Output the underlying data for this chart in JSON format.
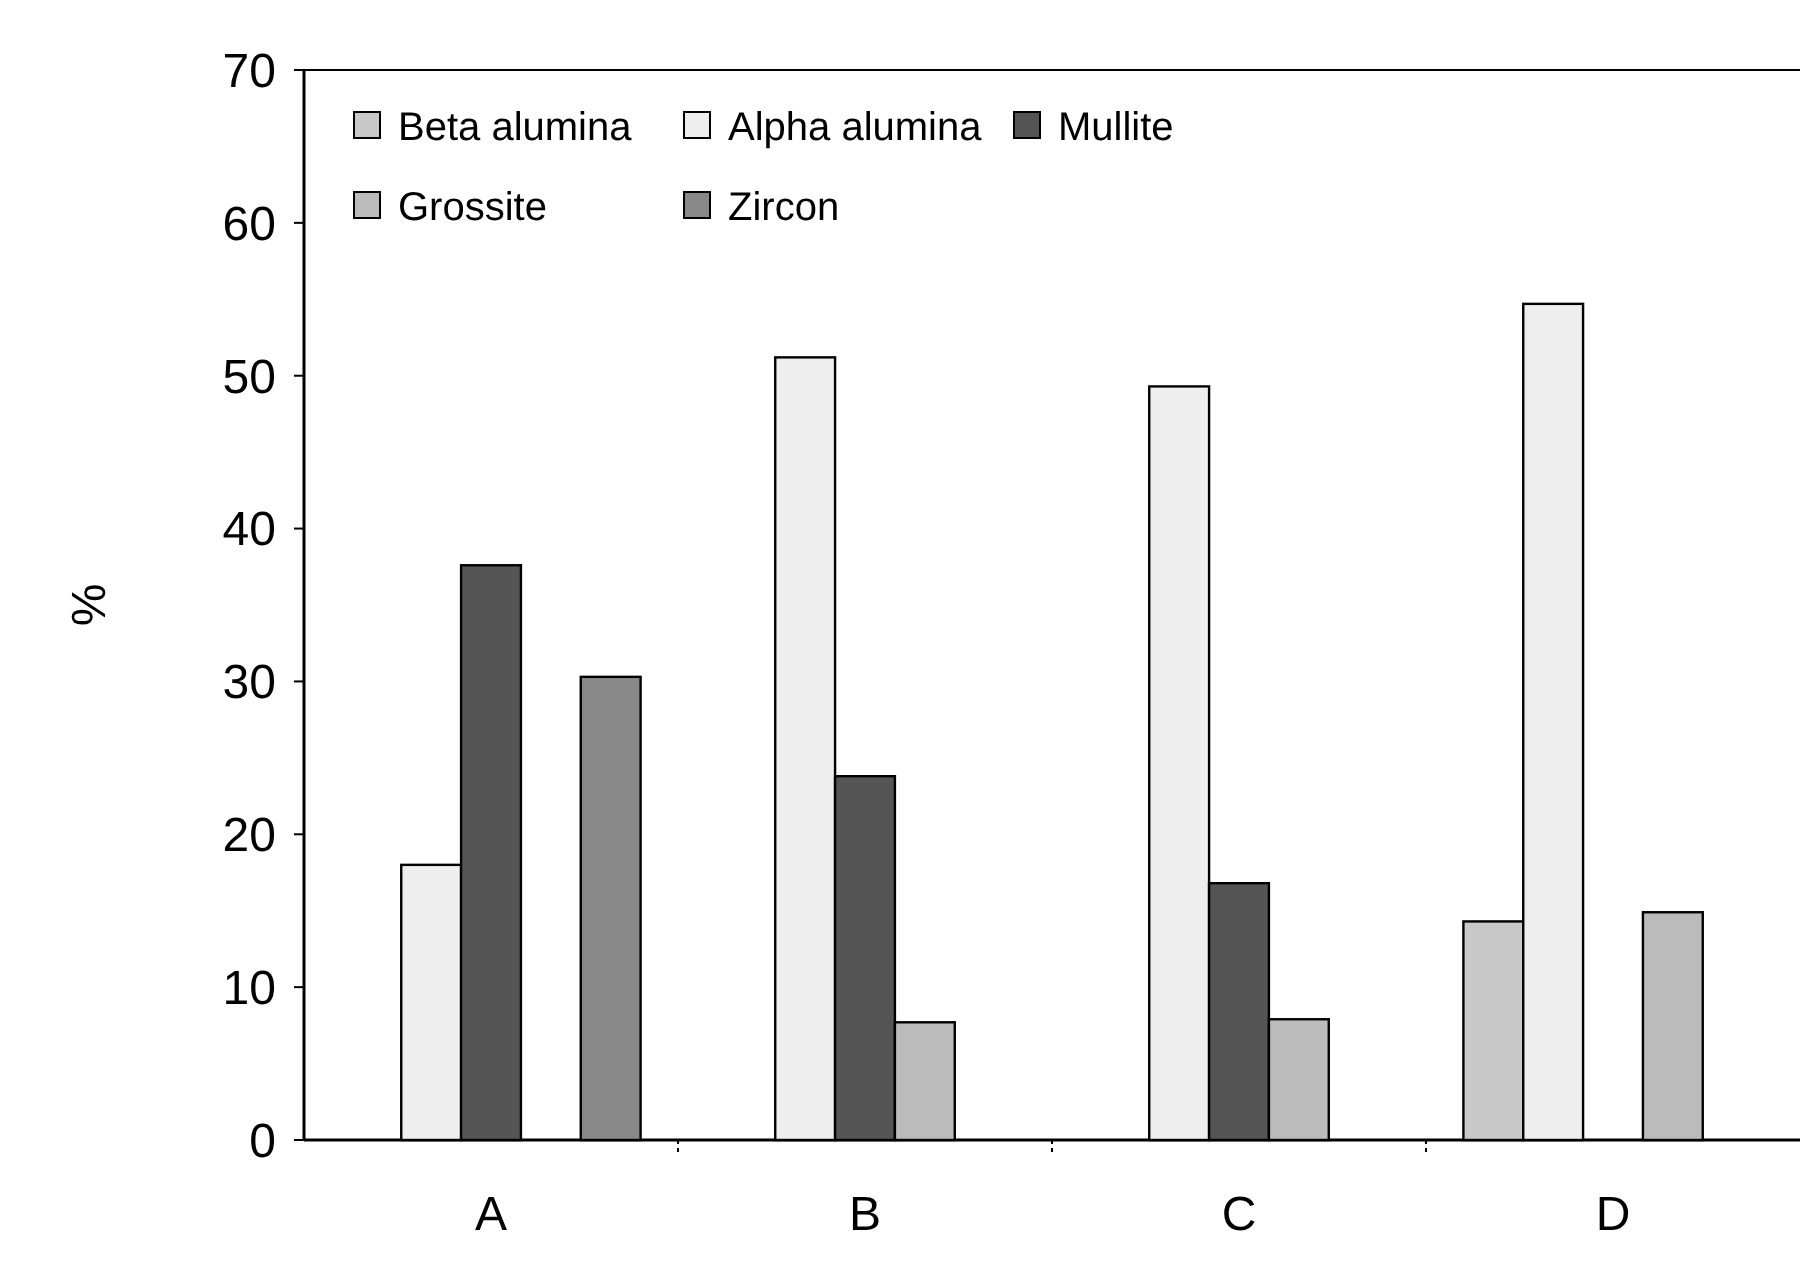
{
  "chart_data": {
    "type": "bar",
    "ylabel": "%",
    "categories": [
      "A",
      "B",
      "C",
      "D"
    ],
    "series": [
      {
        "name": "Beta alumina",
        "color": "#c8c8c8",
        "values": [
          null,
          null,
          null,
          14.3
        ]
      },
      {
        "name": "Alpha alumina",
        "color": "#eeeeee",
        "values": [
          18,
          51.2,
          49.3,
          54.7
        ]
      },
      {
        "name": "Mullite",
        "color": "#555555",
        "values": [
          37.6,
          23.8,
          16.8,
          null
        ]
      },
      {
        "name": "Grossite",
        "color": "#bbbbbb",
        "values": [
          null,
          7.7,
          7.9,
          14.9
        ]
      },
      {
        "name": "Zircon",
        "color": "#888888",
        "values": [
          30.3,
          null,
          null,
          null
        ]
      }
    ],
    "ylim": [
      0,
      70
    ],
    "yticks": [
      0,
      10,
      20,
      30,
      40,
      50,
      60,
      70
    ],
    "grid": false,
    "legend": "top left"
  }
}
